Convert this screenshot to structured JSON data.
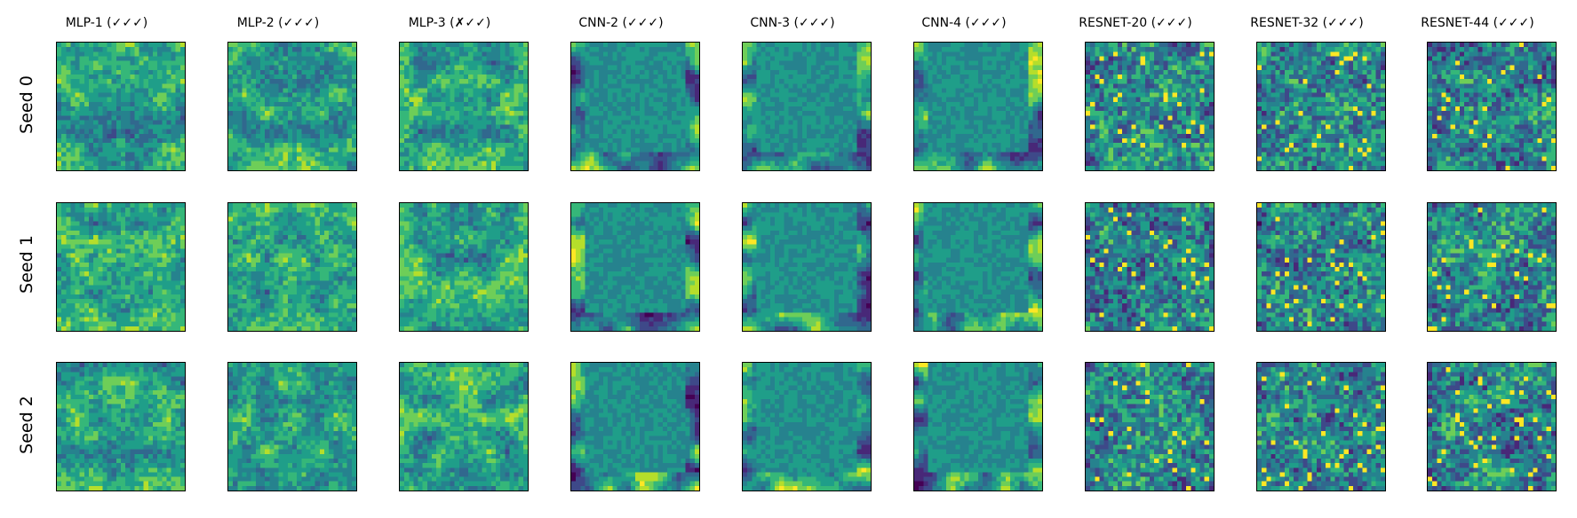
{
  "chart_data": {
    "type": "heatmap",
    "columns": [
      "MLP-1 (✓✓✓)",
      "MLP-2 (✓✓✓)",
      "MLP-3 (✗✓✓)",
      "CNN-2 (✓✓✓)",
      "CNN-3 (✓✓✓)",
      "CNN-4 (✓✓✓)",
      "RESNET-20 (✓✓✓)",
      "RESNET-32 (✓✓✓)",
      "RESNET-44 (✓✓✓)"
    ],
    "rows": [
      "Seed 0",
      "Seed 1",
      "Seed 2"
    ],
    "colormap": "viridis",
    "grid_size": 28,
    "panel_styles": [
      "mlp-bright",
      "mlp-bright",
      "mlp-bright",
      "cnn-flat",
      "cnn-flat",
      "cnn-flat",
      "resnet-noisy",
      "resnet-noisy",
      "resnet-noisy"
    ],
    "axes_ticks": "none",
    "colors": {
      "viridis": [
        "#440154",
        "#482878",
        "#3e4989",
        "#31688e",
        "#26828e",
        "#1f9e89",
        "#35b779",
        "#6ece58",
        "#b5de2b",
        "#fde725"
      ]
    }
  }
}
